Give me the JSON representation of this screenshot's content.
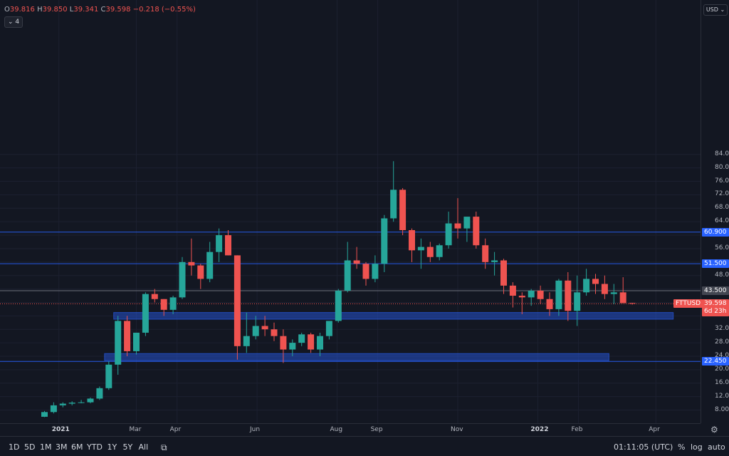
{
  "legend": {
    "open_label": "O",
    "open": "39.816",
    "high_label": "H",
    "high": "39.850",
    "low_label": "L",
    "low": "39.341",
    "close_label": "C",
    "close": "39.598",
    "change": "−0.218 (−0.55%)",
    "indicators_count": "4",
    "collapse_icon": "chevron-down-icon"
  },
  "currency": "USD",
  "colors": {
    "up": "#26a69a",
    "down": "#ef5350",
    "zone": "#2962ff",
    "level_line": "#2962ff",
    "bg": "#131722"
  },
  "chart_data": {
    "type": "candlestick",
    "symbol": "FTTUSD",
    "interval": "1W",
    "y_ticks": [
      8,
      12,
      16,
      20,
      24,
      28,
      32,
      36,
      40,
      44,
      48,
      52,
      56,
      60,
      64,
      68,
      72,
      76,
      80,
      84
    ],
    "y_tick_labels": [
      "8.000",
      "12.000",
      "16.000",
      "20.000",
      "24.000",
      "28.000",
      "32.000",
      "",
      "",
      "",
      "48.000",
      "",
      "56.000",
      "",
      "64.000",
      "68.000",
      "72.000",
      "76.000",
      "80.000",
      "84.000"
    ],
    "x_labels": [
      {
        "label": "2021",
        "date": "2021-01-01",
        "bold": true
      },
      {
        "label": "Mar",
        "date": "2021-03-01"
      },
      {
        "label": "Apr",
        "date": "2021-04-01"
      },
      {
        "label": "Jun",
        "date": "2021-06-01"
      },
      {
        "label": "Aug",
        "date": "2021-08-01"
      },
      {
        "label": "Sep",
        "date": "2021-09-01"
      },
      {
        "label": "Nov",
        "date": "2021-11-01"
      },
      {
        "label": "2022",
        "date": "2022-01-01",
        "bold": true
      },
      {
        "label": "Feb",
        "date": "2022-02-01"
      },
      {
        "label": "Apr",
        "date": "2022-04-01"
      }
    ],
    "start_date": "2020-12-21",
    "candles": [
      [
        6.0,
        7.7,
        5.9,
        7.4
      ],
      [
        7.4,
        10.3,
        7.0,
        9.4
      ],
      [
        9.4,
        10.3,
        8.8,
        9.9
      ],
      [
        9.9,
        10.6,
        9.4,
        10.2
      ],
      [
        10.2,
        11.0,
        10.0,
        10.3
      ],
      [
        10.3,
        11.7,
        10.0,
        11.4
      ],
      [
        11.4,
        15.0,
        11.0,
        14.5
      ],
      [
        14.5,
        22.5,
        14.0,
        21.5
      ],
      [
        21.5,
        36.0,
        18.5,
        34.5
      ],
      [
        34.5,
        36.0,
        24.0,
        25.5
      ],
      [
        25.5,
        31.0,
        24.5,
        31.0
      ],
      [
        31.0,
        43.0,
        30.0,
        42.5
      ],
      [
        42.5,
        44.0,
        40.0,
        41.0
      ],
      [
        41.0,
        41.0,
        36.0,
        37.8
      ],
      [
        37.8,
        42.0,
        36.5,
        41.5
      ],
      [
        41.5,
        53.5,
        41.0,
        52.0
      ],
      [
        52.0,
        59.0,
        48.0,
        51.0
      ],
      [
        51.0,
        51.5,
        44.0,
        47.0
      ],
      [
        47.0,
        58.0,
        46.0,
        55.0
      ],
      [
        55.0,
        62.0,
        52.0,
        60.0
      ],
      [
        60.0,
        61.5,
        54.0,
        54.0
      ],
      [
        54.0,
        54.0,
        23.0,
        27.0
      ],
      [
        27.0,
        37.0,
        25.0,
        30.0
      ],
      [
        30.0,
        36.0,
        29.0,
        33.0
      ],
      [
        33.0,
        36.0,
        30.0,
        32.0
      ],
      [
        32.0,
        34.0,
        28.5,
        30.0
      ],
      [
        30.0,
        32.0,
        22.0,
        26.0
      ],
      [
        26.0,
        29.0,
        24.0,
        28.0
      ],
      [
        28.0,
        31.0,
        27.0,
        30.5
      ],
      [
        30.5,
        31.0,
        25.0,
        26.0
      ],
      [
        26.0,
        31.0,
        24.0,
        30.0
      ],
      [
        30.0,
        34.0,
        29.0,
        34.5
      ],
      [
        34.5,
        44.0,
        34.0,
        43.5
      ],
      [
        43.5,
        58.0,
        43.0,
        52.5
      ],
      [
        52.5,
        56.5,
        50.0,
        51.5
      ],
      [
        51.5,
        52.0,
        45.0,
        47.0
      ],
      [
        47.0,
        54.0,
        46.0,
        51.5
      ],
      [
        51.5,
        66.0,
        49.0,
        65.0
      ],
      [
        65.0,
        82.0,
        64.0,
        73.5
      ],
      [
        73.5,
        74.0,
        60.0,
        61.5
      ],
      [
        61.5,
        62.0,
        52.0,
        55.5
      ],
      [
        55.5,
        59.0,
        50.0,
        56.5
      ],
      [
        56.5,
        58.0,
        52.0,
        53.5
      ],
      [
        53.5,
        57.5,
        52.5,
        57.0
      ],
      [
        57.0,
        67.0,
        56.0,
        63.5
      ],
      [
        63.5,
        71.0,
        59.0,
        62.0
      ],
      [
        62.0,
        65.0,
        58.0,
        65.5
      ],
      [
        65.5,
        67.0,
        56.0,
        57.0
      ],
      [
        57.0,
        59.0,
        50.0,
        52.0
      ],
      [
        52.0,
        55.0,
        48.0,
        52.5
      ],
      [
        52.5,
        53.0,
        42.5,
        45.0
      ],
      [
        45.0,
        46.0,
        38.5,
        42.0
      ],
      [
        42.0,
        43.0,
        36.5,
        41.5
      ],
      [
        41.5,
        44.0,
        39.0,
        43.5
      ],
      [
        43.5,
        45.0,
        39.5,
        41.0
      ],
      [
        41.0,
        43.0,
        36.0,
        38.0
      ],
      [
        38.0,
        47.0,
        36.0,
        46.5
      ],
      [
        46.5,
        49.0,
        34.5,
        37.5
      ],
      [
        37.5,
        48.0,
        33.0,
        43.0
      ],
      [
        43.0,
        50.0,
        42.0,
        47.0
      ],
      [
        47.0,
        48.5,
        42.5,
        45.5
      ],
      [
        45.5,
        48.0,
        41.0,
        42.5
      ],
      [
        42.5,
        45.5,
        39.5,
        43.0
      ],
      [
        43.0,
        47.5,
        40.0,
        39.8
      ],
      [
        39.816,
        39.85,
        39.341,
        39.598
      ]
    ],
    "levels": [
      {
        "price": 60.9,
        "label": "60.900",
        "style": "blue"
      },
      {
        "price": 51.5,
        "label": "51.500",
        "style": "blue"
      },
      {
        "price": 43.5,
        "label": "43.500",
        "style": "gray"
      },
      {
        "price": 22.45,
        "label": "22.450",
        "style": "blue"
      }
    ],
    "zones": [
      {
        "from": 35.0,
        "to": 37.0,
        "start_index": 8,
        "end_index": 68
      },
      {
        "from": 22.7,
        "to": 24.8,
        "start_index": 7,
        "end_index": 61
      }
    ],
    "last_price": {
      "label": "FTTUSD",
      "value": "39.598",
      "countdown": "6d 23h"
    }
  },
  "toolbar": {
    "timeframes": [
      "1D",
      "5D",
      "1M",
      "3M",
      "6M",
      "YTD",
      "1Y",
      "5Y",
      "All"
    ],
    "date_range_icon": "calendar-icon",
    "clock": "01:11:05 (UTC)",
    "percent": "%",
    "log": "log",
    "auto": "auto",
    "settings_icon": "gear-icon"
  }
}
